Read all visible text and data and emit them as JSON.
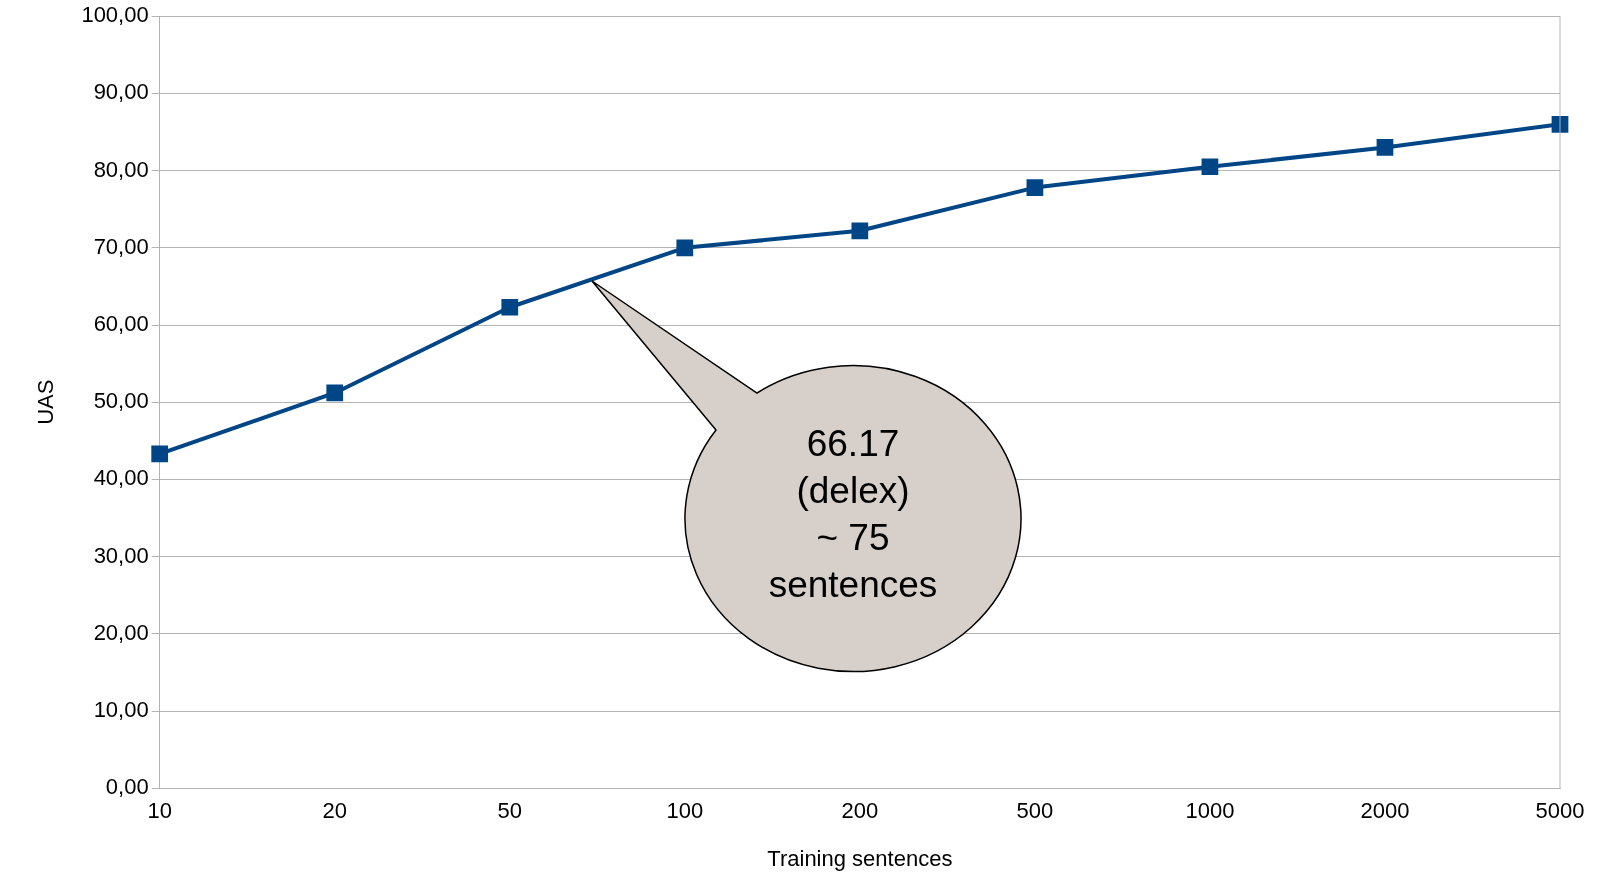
{
  "chart_data": {
    "type": "line",
    "xlabel": "Training sentences",
    "ylabel": "UAS",
    "categories": [
      "10",
      "20",
      "50",
      "100",
      "200",
      "500",
      "1000",
      "2000",
      "5000"
    ],
    "series": [
      {
        "color": "#004586",
        "values": [
          43.3,
          51.2,
          62.3,
          70.0,
          72.2,
          77.8,
          80.5,
          83.0,
          86.0
        ]
      }
    ],
    "ylim": [
      0,
      100
    ],
    "yticks": [
      {
        "value": 0,
        "label": "0,00"
      },
      {
        "value": 10,
        "label": "10,00"
      },
      {
        "value": 20,
        "label": "20,00"
      },
      {
        "value": 30,
        "label": "30,00"
      },
      {
        "value": 40,
        "label": "40,00"
      },
      {
        "value": 50,
        "label": "50,00"
      },
      {
        "value": 60,
        "label": "60,00"
      },
      {
        "value": 70,
        "label": "70,00"
      },
      {
        "value": 80,
        "label": "80,00"
      },
      {
        "value": 90,
        "label": "90,00"
      },
      {
        "value": 100,
        "label": "100,00"
      }
    ],
    "grid": "y",
    "legend": false,
    "marker": "square",
    "line_style": "solid",
    "annotations": [
      "66.17\n(delex)\n~ 75\nsentences"
    ]
  }
}
